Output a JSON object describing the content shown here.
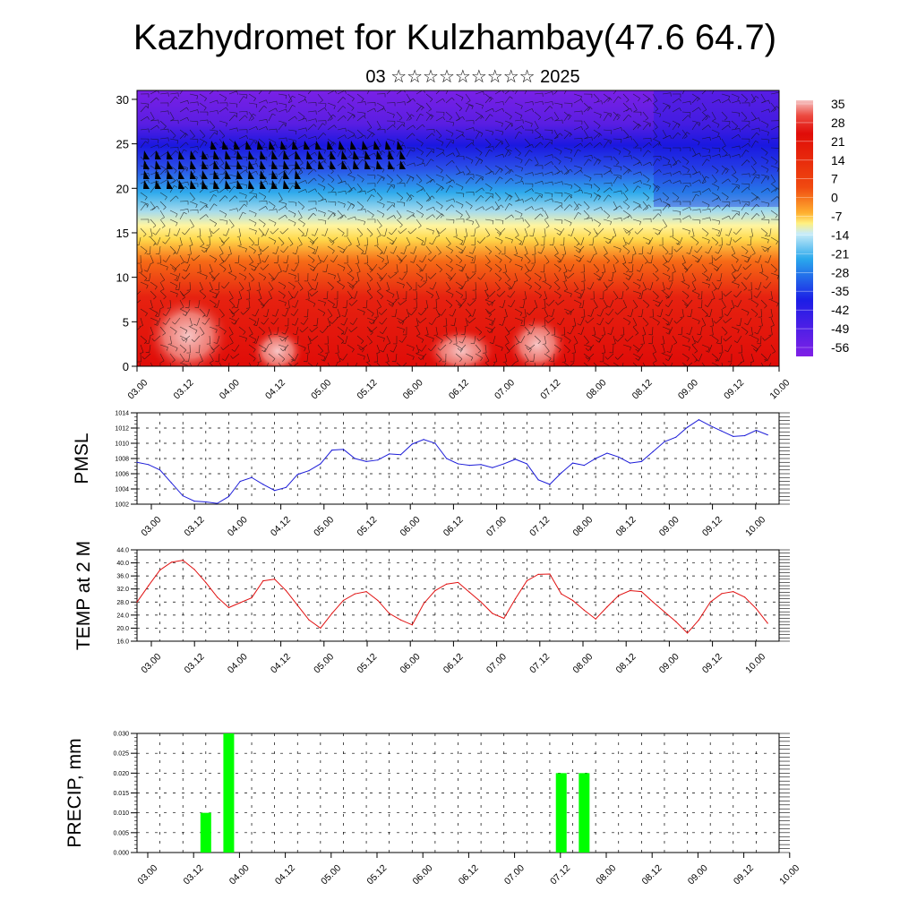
{
  "title": "Kazhydromet for Kulzhambay(47.6 64.7)",
  "subtitle": "03 ☆☆☆☆☆☆☆☆☆ 2025",
  "time_labels": [
    "03.00",
    "03.12",
    "04.00",
    "04.12",
    "05.00",
    "05.12",
    "06.00",
    "06.12",
    "07.00",
    "07.12",
    "08.00",
    "08.12",
    "09.00",
    "09.12",
    "10.00"
  ],
  "chart_data": [
    {
      "type": "heatmap",
      "description_of_variable": "air temperature cross-section with wind barbs",
      "x": [
        "03.00",
        "03.12",
        "04.00",
        "04.12",
        "05.00",
        "05.12",
        "06.00",
        "06.12",
        "07.00",
        "07.12",
        "08.00",
        "08.12",
        "09.00",
        "09.12",
        "10.00"
      ],
      "ylim": [
        0,
        31
      ],
      "yticks": [
        0,
        5,
        10,
        15,
        20,
        25,
        30
      ],
      "colorbar_labels": [
        "35",
        "28",
        "21",
        "14",
        "7",
        "0",
        "-7",
        "-14",
        "-21",
        "-28",
        "-35",
        "-42",
        "-49",
        "-56"
      ],
      "colorbar_values": [
        35,
        28,
        21,
        14,
        7,
        0,
        -7,
        -14,
        -21,
        -28,
        -35,
        -42,
        -49,
        -56
      ],
      "colors": {
        "hot": "#f4b6b6",
        "red": "#e0100a",
        "orange": "#f59a1a",
        "yellow": "#fff06a",
        "cyan": "#34b2ee",
        "blue": "#1a22e8",
        "violet": "#7a1ce6"
      }
    },
    {
      "type": "line",
      "ylabel": "PMSL",
      "ylim": [
        1002,
        1014
      ],
      "yticks": [
        "1002",
        "1004",
        "1006",
        "1008",
        "1010",
        "1012",
        "1014"
      ],
      "color": "#1c1cd8",
      "x": [
        0,
        3,
        6,
        9,
        12,
        15,
        18,
        21,
        24,
        27,
        30,
        33,
        36,
        39,
        42,
        45,
        48,
        51,
        54,
        57,
        60,
        63,
        66,
        69,
        72,
        75,
        78,
        81,
        84,
        87,
        90,
        93,
        96,
        99,
        102,
        105,
        108,
        111,
        114,
        117,
        120,
        123,
        126,
        129,
        132,
        135,
        138,
        141,
        144,
        147,
        150,
        153,
        156,
        159,
        162,
        165
      ],
      "values": [
        1007.5,
        1007.2,
        1006.5,
        1004.8,
        1003.1,
        1002.4,
        1002.3,
        1002.1,
        1003.0,
        1005.0,
        1005.5,
        1004.6,
        1003.8,
        1004.2,
        1005.9,
        1006.4,
        1007.3,
        1009.1,
        1009.2,
        1008.0,
        1007.6,
        1007.8,
        1008.6,
        1008.5,
        1009.9,
        1010.5,
        1010.0,
        1008.0,
        1007.3,
        1007.1,
        1007.2,
        1006.8,
        1007.3,
        1007.9,
        1007.3,
        1005.2,
        1004.6,
        1006.1,
        1007.4,
        1007.1,
        1008.0,
        1008.7,
        1008.2,
        1007.4,
        1007.6,
        1008.9,
        1010.2,
        1010.8,
        1012.1,
        1013.1,
        1012.3,
        1011.6,
        1010.9,
        1011.0,
        1011.7,
        1011.1
      ]
    },
    {
      "type": "line",
      "ylabel": "TEMP at 2 M",
      "ylim": [
        16,
        44
      ],
      "yticks": [
        "16.0",
        "20.0",
        "24.0",
        "28.0",
        "32.0",
        "36.0",
        "40.0",
        "44.0"
      ],
      "color": "#e01010",
      "x": [
        0,
        3,
        6,
        9,
        12,
        15,
        18,
        21,
        24,
        27,
        30,
        33,
        36,
        39,
        42,
        45,
        48,
        51,
        54,
        57,
        60,
        63,
        66,
        69,
        72,
        75,
        78,
        81,
        84,
        87,
        90,
        93,
        96,
        99,
        102,
        105,
        108,
        111,
        114,
        117,
        120,
        123,
        126,
        129,
        132,
        135,
        138,
        141,
        144,
        147,
        150,
        153,
        156,
        159,
        162,
        165
      ],
      "values": [
        28.0,
        33.0,
        37.8,
        40.2,
        40.8,
        38.0,
        34.0,
        29.5,
        26.3,
        27.8,
        29.3,
        34.5,
        35.0,
        31.5,
        27.0,
        22.5,
        20.0,
        24.5,
        28.5,
        30.5,
        31.2,
        28.5,
        24.5,
        22.5,
        21.0,
        27.5,
        31.5,
        33.5,
        34.0,
        31.0,
        28.0,
        24.5,
        23.0,
        29.0,
        34.5,
        36.5,
        36.6,
        30.5,
        28.5,
        25.5,
        22.8,
        26.5,
        30.0,
        31.5,
        31.2,
        28.0,
        25.0,
        22.0,
        18.5,
        22.5,
        28.0,
        30.6,
        31.2,
        29.5,
        26.0,
        21.5
      ]
    },
    {
      "type": "bar",
      "ylabel": "PRECIP, mm",
      "ylim": [
        0,
        0.03
      ],
      "yticks": [
        "0.000",
        "0.005",
        "0.010",
        "0.015",
        "0.020",
        "0.025",
        "0.030"
      ],
      "color": "#00ff00",
      "x": [
        18,
        24,
        111,
        117
      ],
      "values": [
        0.01,
        0.03,
        0.02,
        0.02
      ]
    }
  ]
}
